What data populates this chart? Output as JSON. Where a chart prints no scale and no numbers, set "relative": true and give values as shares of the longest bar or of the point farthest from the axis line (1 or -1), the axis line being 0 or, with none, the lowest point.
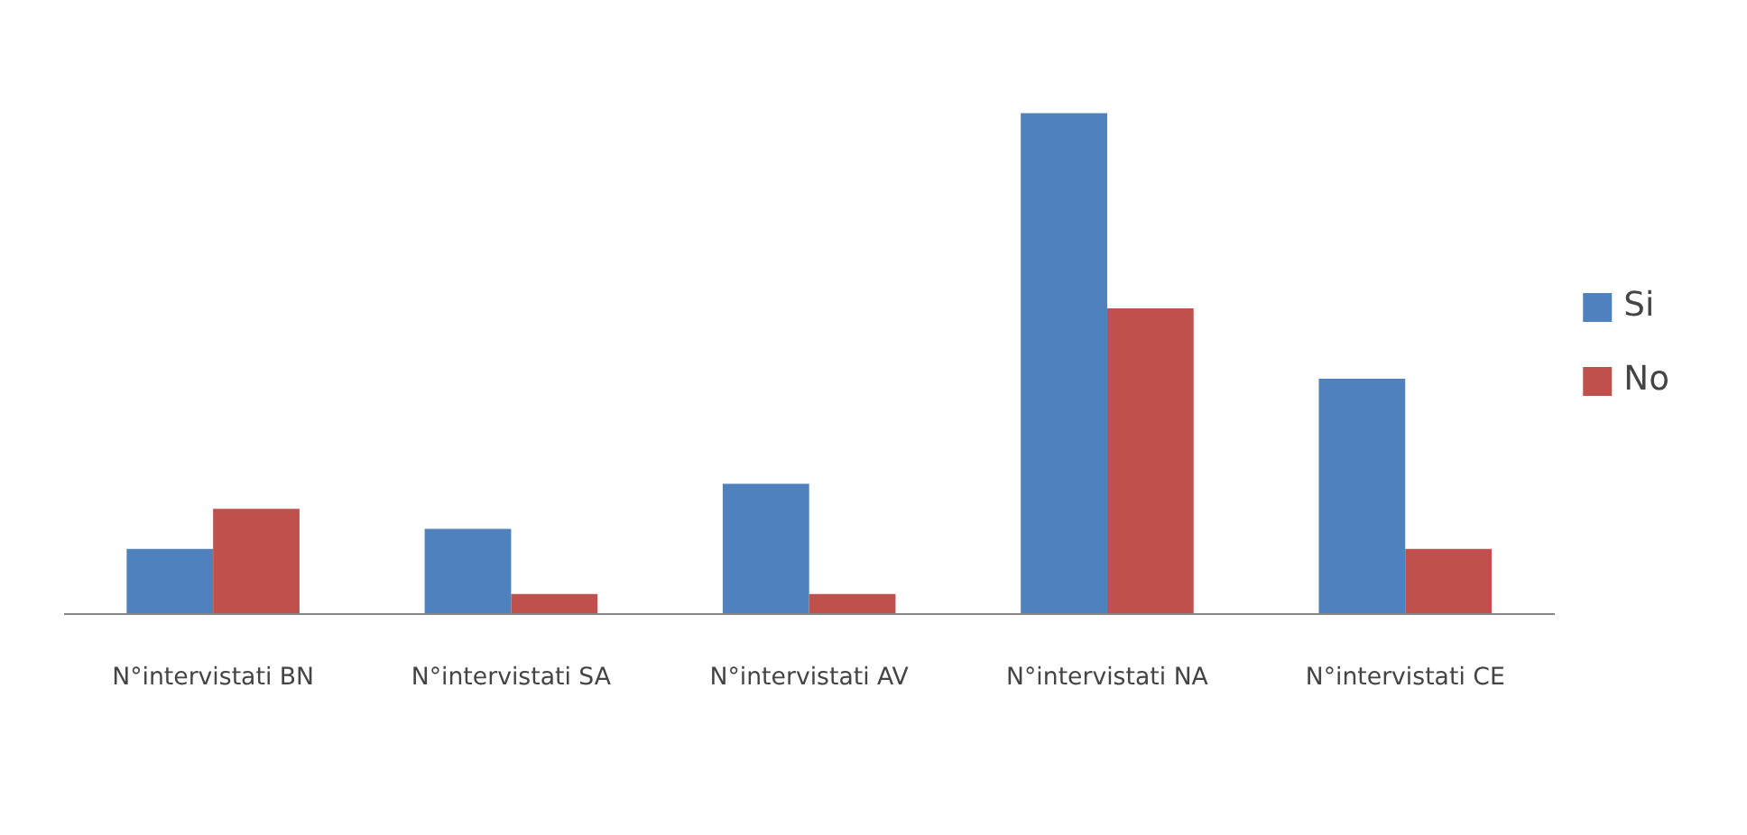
{
  "chart_data": {
    "type": "bar",
    "relative": true,
    "categories": [
      "N°intervistati BN",
      "N°intervistati SA",
      "N°intervistati AV",
      "N°intervistati NA",
      "N°intervistati CE"
    ],
    "series": [
      {
        "name": "Si",
        "color": "#4f81bd",
        "values": [
          0.13,
          0.17,
          0.26,
          1,
          0.47
        ]
      },
      {
        "name": "No",
        "color": "#c0504d",
        "values": [
          0.21,
          0.04,
          0.04,
          0.61,
          0.13
        ]
      }
    ],
    "legend": "right",
    "grid": false
  }
}
